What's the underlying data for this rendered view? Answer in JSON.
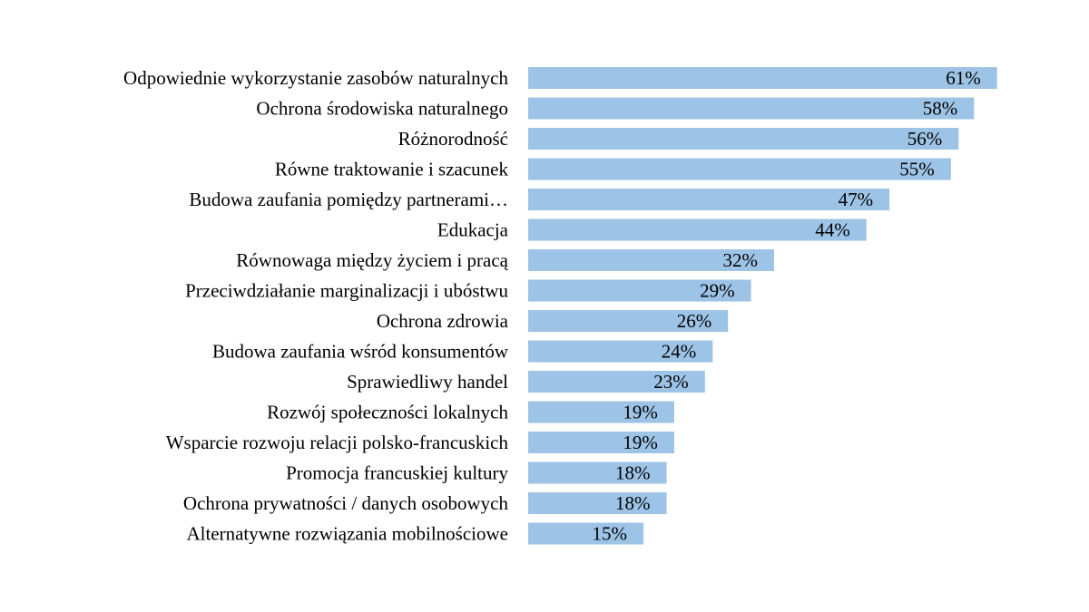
{
  "chart_data": {
    "type": "bar",
    "orientation": "horizontal",
    "title": "",
    "xlabel": "",
    "ylabel": "",
    "xlim": [
      0,
      70
    ],
    "grid": false,
    "legend": "none",
    "bar_color": "#9DC3E6",
    "categories": [
      "Odpowiednie wykorzystanie zasobów naturalnych",
      "Ochrona środowiska naturalnego",
      "Różnorodność",
      "Równe traktowanie i szacunek",
      "Budowa zaufania pomiędzy partnerami…",
      "Edukacja",
      "Równowaga między życiem i pracą",
      "Przeciwdziałanie marginalizacji i ubóstwu",
      "Ochrona zdrowia",
      "Budowa zaufania wśród konsumentów",
      "Sprawiedliwy handel",
      "Rozwój społeczności lokalnych",
      "Wsparcie rozwoju relacji polsko-francuskich",
      "Promocja francuskiej kultury",
      "Ochrona prywatności / danych osobowych",
      "Alternatywne rozwiązania mobilnościowe"
    ],
    "values": [
      61,
      58,
      56,
      55,
      47,
      44,
      32,
      29,
      26,
      24,
      23,
      19,
      19,
      18,
      18,
      15
    ],
    "value_labels": [
      "61%",
      "58%",
      "56%",
      "55%",
      "47%",
      "44%",
      "32%",
      "29%",
      "26%",
      "24%",
      "23%",
      "19%",
      "19%",
      "18%",
      "18%",
      "15%"
    ]
  }
}
